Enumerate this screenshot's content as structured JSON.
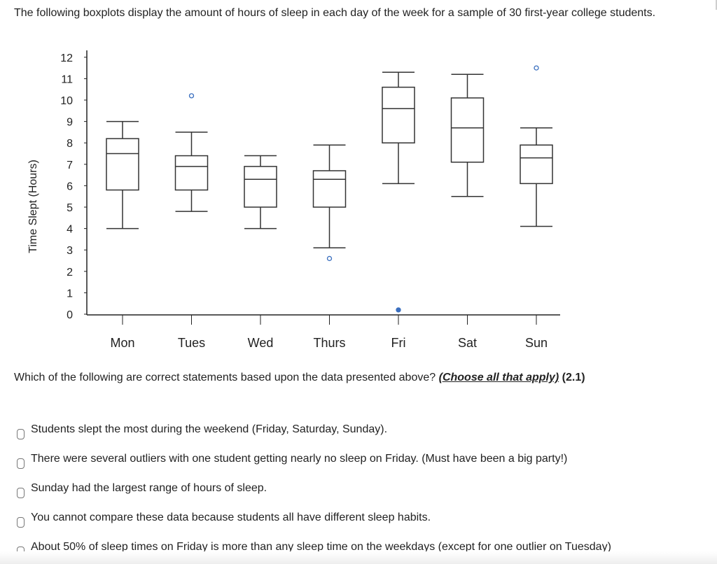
{
  "intro_text": "The following boxplots display the amount of hours of sleep in each day of the week for a sample of 30 first-year college students.",
  "question": {
    "text": "Which of the following are correct statements based upon the data presented above?",
    "emphasis": "(Choose all that apply)",
    "code": "(2.1)"
  },
  "options": [
    {
      "label": "Students slept the most during the weekend (Friday, Saturday, Sunday)."
    },
    {
      "label": "There were several outliers with one student getting nearly no sleep on Friday. (Must have been a big party!)"
    },
    {
      "label": "Sunday had the largest range of hours of sleep."
    },
    {
      "label": "You cannot compare these data because students all have different sleep habits."
    },
    {
      "label": "About 50% of sleep times on Friday is more than any sleep time on the weekdays (except for one outlier on Tuesday)"
    }
  ],
  "chart_data": {
    "type": "boxplot",
    "ylabel": "Time Slept (Hours)",
    "xlabel": "",
    "ylim": [
      0,
      12
    ],
    "yticks": [
      0,
      1,
      2,
      3,
      4,
      5,
      6,
      7,
      8,
      9,
      10,
      11,
      12
    ],
    "categories": [
      "Mon",
      "Tues",
      "Wed",
      "Thurs",
      "Fri",
      "Sat",
      "Sun"
    ],
    "boxes": [
      {
        "category": "Mon",
        "min": 4.0,
        "q1": 5.8,
        "median": 7.5,
        "q3": 8.2,
        "max": 9.0,
        "outliers": []
      },
      {
        "category": "Tues",
        "min": 4.8,
        "q1": 5.8,
        "median": 6.9,
        "q3": 7.4,
        "max": 8.5,
        "outliers": [
          [
            10.2,
            "open"
          ]
        ]
      },
      {
        "category": "Wed",
        "min": 4.0,
        "q1": 5.0,
        "median": 6.3,
        "q3": 6.9,
        "max": 7.4,
        "outliers": []
      },
      {
        "category": "Thurs",
        "min": 3.1,
        "q1": 5.0,
        "median": 6.3,
        "q3": 6.7,
        "max": 7.9,
        "outliers": [
          [
            2.6,
            "open"
          ]
        ]
      },
      {
        "category": "Fri",
        "min": 6.1,
        "q1": 8.0,
        "median": 9.6,
        "q3": 10.6,
        "max": 11.3,
        "outliers": [
          [
            0.2,
            "filled"
          ]
        ]
      },
      {
        "category": "Sat",
        "min": 5.5,
        "q1": 7.1,
        "median": 8.7,
        "q3": 10.1,
        "max": 11.2,
        "outliers": []
      },
      {
        "category": "Sun",
        "min": 4.1,
        "q1": 6.1,
        "median": 7.3,
        "q3": 7.9,
        "max": 8.7,
        "outliers": [
          [
            11.5,
            "open"
          ]
        ]
      }
    ],
    "colors": {
      "box_stroke": "#333333",
      "outlier_open": "#3a6fbf",
      "outlier_filled": "#3a6fbf"
    }
  }
}
